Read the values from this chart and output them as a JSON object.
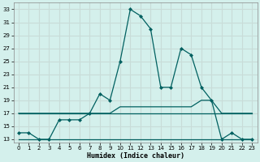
{
  "xlabel": "Humidex (Indice chaleur)",
  "x": [
    0,
    1,
    2,
    3,
    4,
    5,
    6,
    7,
    8,
    9,
    10,
    11,
    12,
    13,
    14,
    15,
    16,
    17,
    18,
    19,
    20,
    21,
    22,
    23
  ],
  "main_line": [
    14,
    14,
    13,
    13,
    16,
    16,
    16,
    17,
    20,
    19,
    25,
    33,
    32,
    30,
    21,
    21,
    27,
    26,
    21,
    19,
    13,
    14,
    13,
    13
  ],
  "min_line": [
    13,
    13,
    13,
    13,
    13,
    13,
    13,
    13,
    13,
    13,
    13,
    13,
    13,
    13,
    13,
    13,
    13,
    13,
    13,
    13,
    13,
    13,
    13,
    13
  ],
  "max_line": [
    17,
    17,
    17,
    17,
    17,
    17,
    17,
    17,
    17,
    17,
    18,
    18,
    18,
    18,
    18,
    18,
    18,
    18,
    19,
    19,
    17,
    17,
    17,
    17
  ],
  "avg_line": [
    17,
    17,
    17,
    17,
    17,
    17,
    17,
    17,
    17,
    17,
    17,
    17,
    17,
    17,
    17,
    17,
    17,
    17,
    17,
    17,
    17,
    17,
    17,
    17
  ],
  "line_color": "#006060",
  "bg_color": "#d4f0ec",
  "grid_color": "#c8dcd8",
  "ylim": [
    12.5,
    34
  ],
  "xlim": [
    -0.5,
    23.5
  ],
  "yticks": [
    13,
    15,
    17,
    19,
    21,
    23,
    25,
    27,
    29,
    31,
    33
  ],
  "xticks": [
    0,
    1,
    2,
    3,
    4,
    5,
    6,
    7,
    8,
    9,
    10,
    11,
    12,
    13,
    14,
    15,
    16,
    17,
    18,
    19,
    20,
    21,
    22,
    23
  ]
}
